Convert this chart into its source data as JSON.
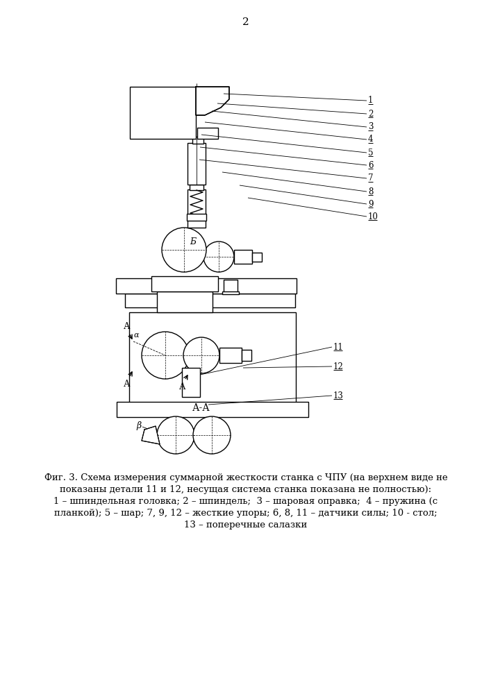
{
  "page_number": "2",
  "fig_caption_bold": "Фиг. 3. Схема измерения суммарной жесткости станка с ЧПУ (на верхнем виде не",
  "caption_l2": "показаны детали 11 и 12, несущая система станка показана не полностью):",
  "caption_l3": "1 – шпиндельная головка; 2 – шпиндель;  3 – шаровая оправка;  4 – пружина (с",
  "caption_l4": "планкой); 5 – шар; 7, 9, 12 – жесткие упоры; 6, 8, 11 – датчики силы; 10 - стол;",
  "caption_l5": "13 – поперечные салазки",
  "bg_color": "#ffffff",
  "lc": "#000000"
}
